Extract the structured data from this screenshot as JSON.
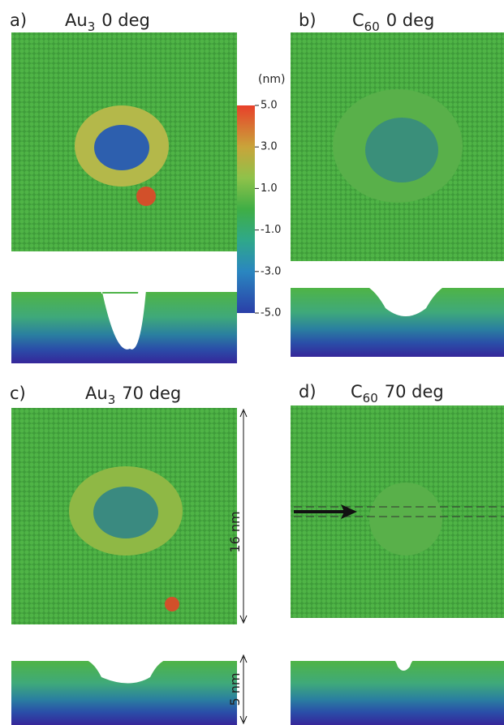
{
  "panels": [
    {
      "letter": "a)",
      "species": "Au",
      "sub": "3",
      "angle": "0 deg"
    },
    {
      "letter": "b)",
      "species": "C",
      "sub": "60",
      "angle": "0 deg"
    },
    {
      "letter": "c)",
      "species": "Au",
      "sub": "3",
      "angle": "70 deg"
    },
    {
      "letter": "d)",
      "species": "C",
      "sub": "60",
      "angle": "70 deg"
    }
  ],
  "colorbar": {
    "label": "(nm)",
    "lim": [
      -5,
      5
    ],
    "ticks": [
      {
        "value": 5,
        "label": "5.0"
      },
      {
        "value": 3,
        "label": "3.0"
      },
      {
        "value": 1,
        "label": "1.0"
      },
      {
        "value": -1,
        "label": "-1.0"
      },
      {
        "value": -3,
        "label": "-3.0"
      },
      {
        "value": -5,
        "label": "-5.0"
      }
    ]
  },
  "scales": {
    "width": "16 nm",
    "depth": "5 nm"
  }
}
